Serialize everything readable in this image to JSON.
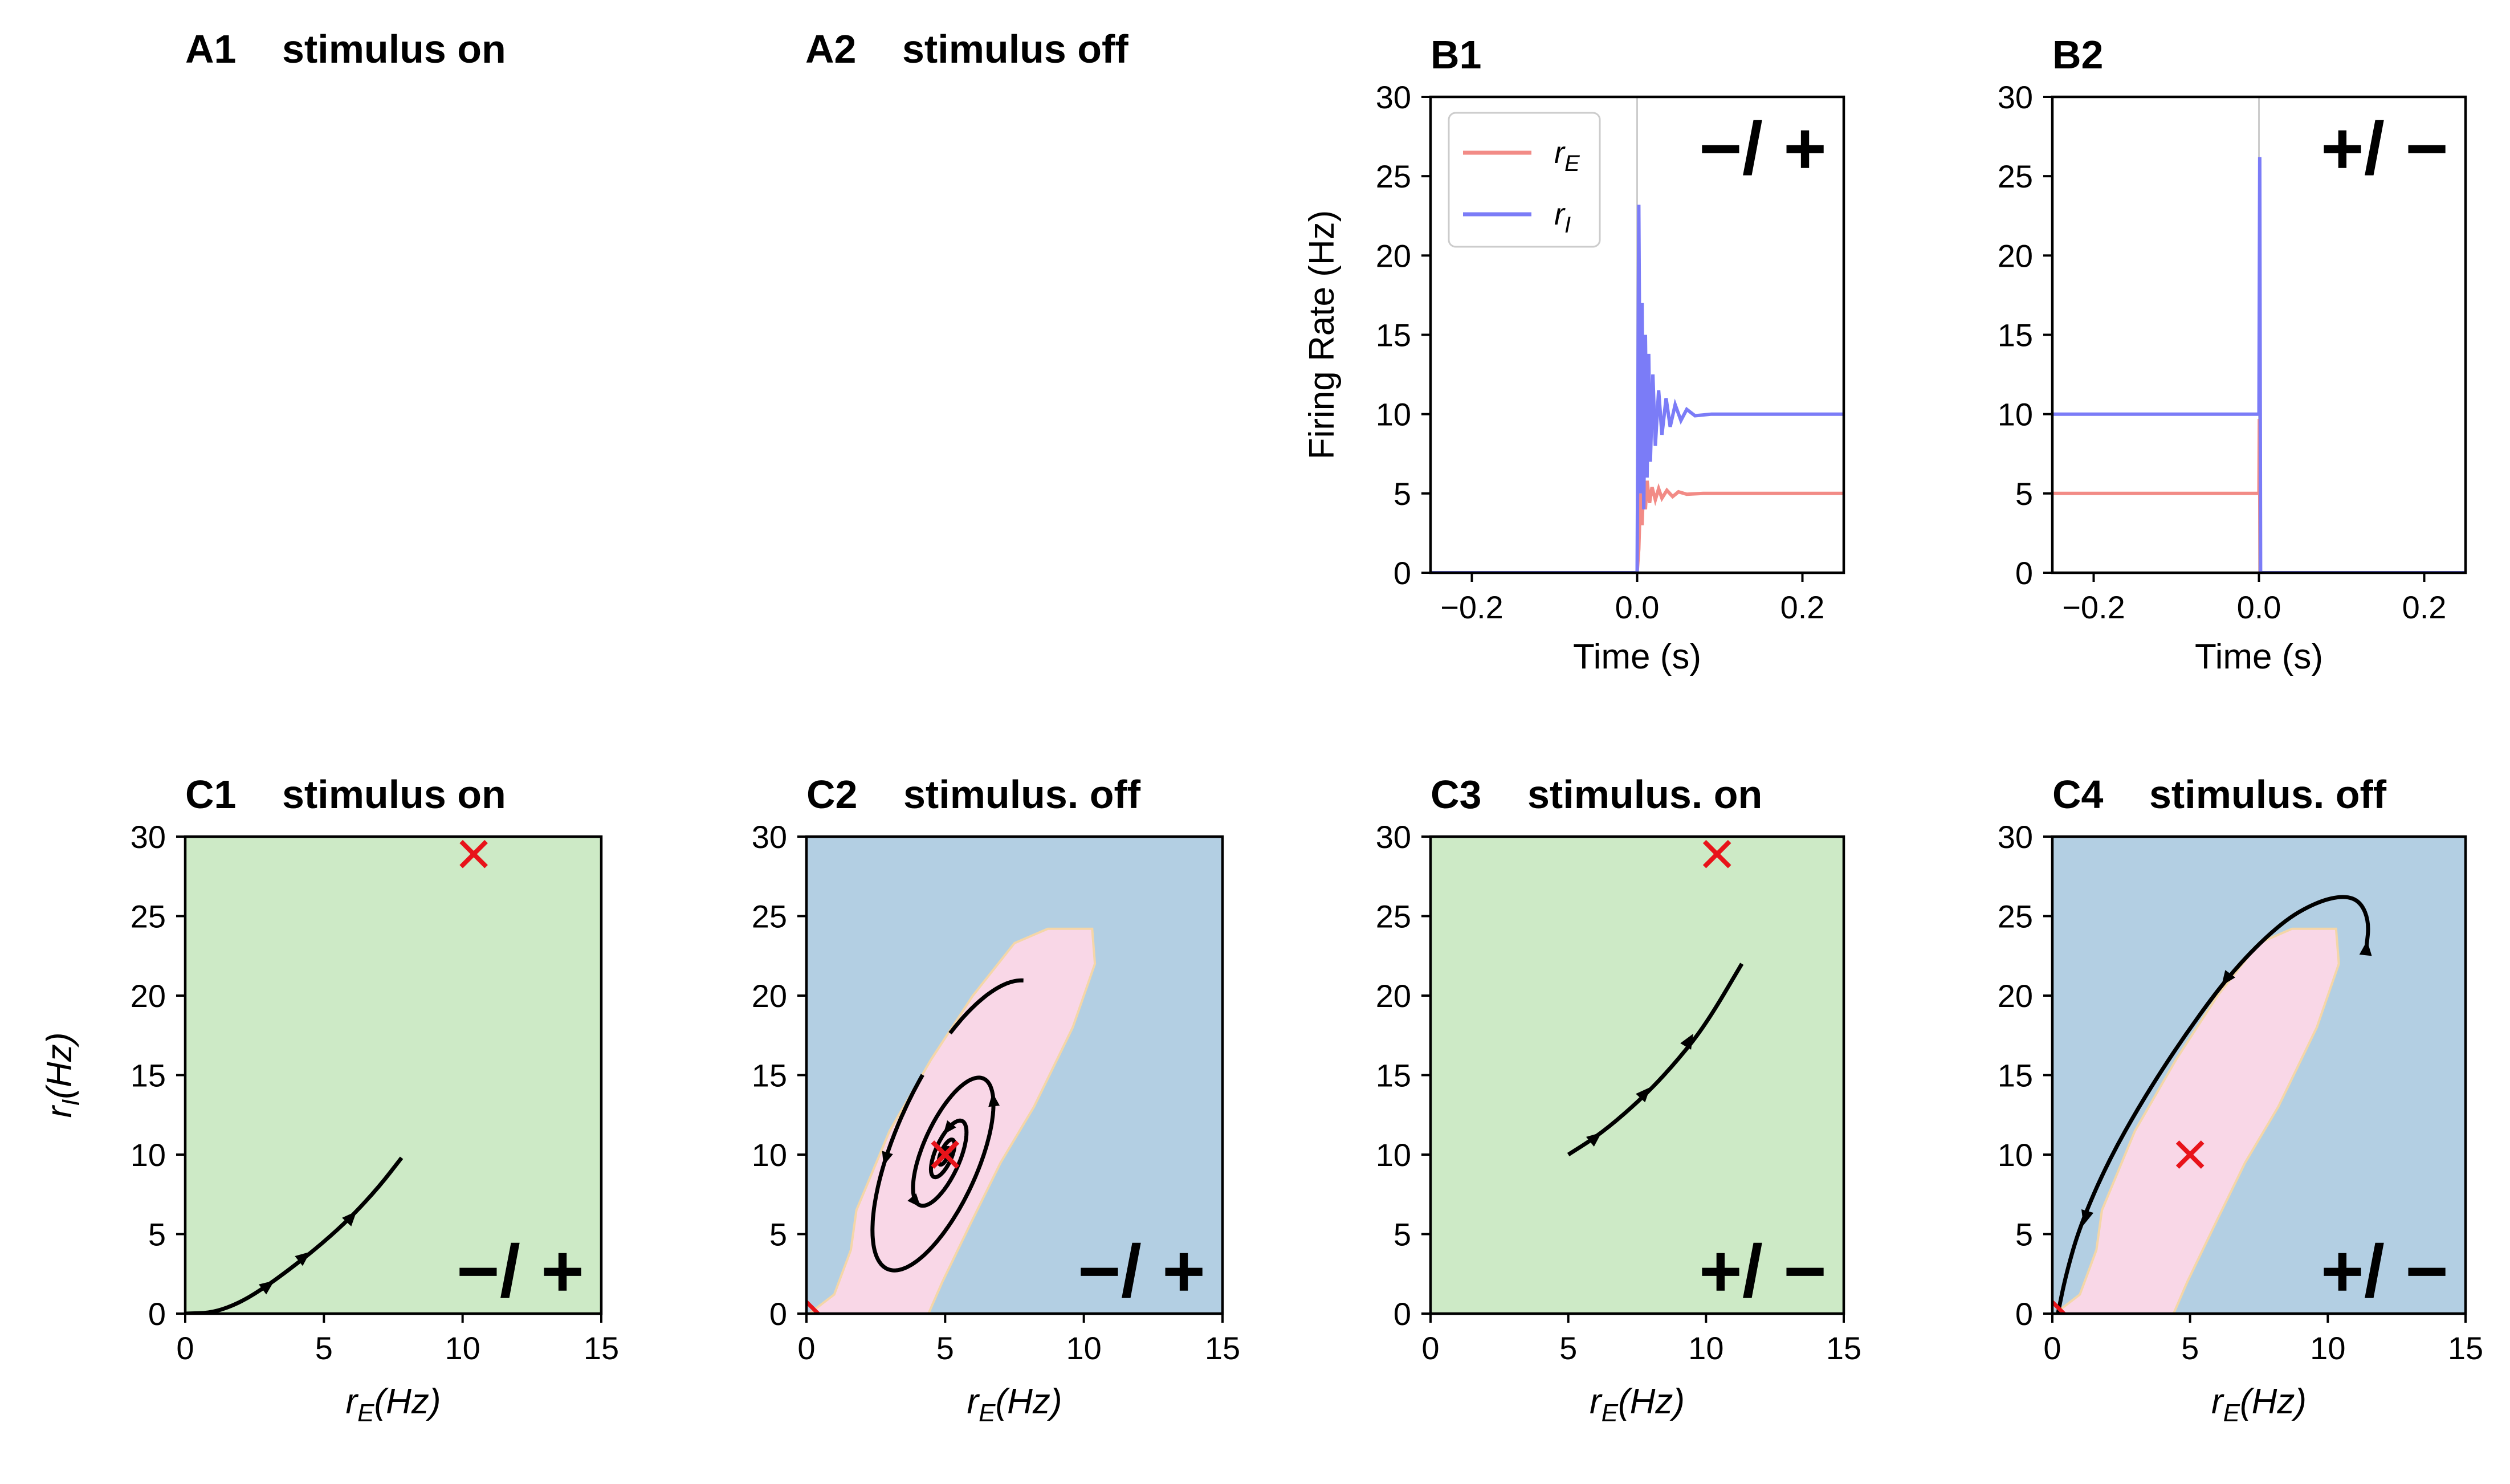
{
  "panels": {
    "A1": {
      "letter": "A1",
      "subtitle": "stimulus on"
    },
    "A2": {
      "letter": "A2",
      "subtitle": "stimulus off"
    }
  },
  "chart_data": [
    {
      "id": "B1",
      "type": "line",
      "letter": "B1",
      "subtitle": "",
      "xlabel": "Time (s)",
      "ylabel": "Firing Rate (Hz)",
      "xlim": [
        -0.25,
        0.25
      ],
      "ylim": [
        0,
        30
      ],
      "xticks": [
        -0.2,
        0.0,
        0.2
      ],
      "xticklabels": [
        "−0.2",
        "0.0",
        "0.2"
      ],
      "yticks": [
        0,
        5,
        10,
        15,
        20,
        25,
        30
      ],
      "sign": "−/ +",
      "legend": {
        "position": "upper-left",
        "entries": [
          {
            "name": "r",
            "sub": "E",
            "color": "#f28b86"
          },
          {
            "name": "r",
            "sub": "I",
            "color": "#7b7cf7"
          }
        ]
      },
      "series": [
        {
          "name": "rE",
          "color": "#f28b86",
          "points": [
            [
              -0.25,
              0
            ],
            [
              0,
              0
            ],
            [
              0.002,
              1.5
            ],
            [
              0.004,
              5
            ],
            [
              0.006,
              3
            ],
            [
              0.008,
              6
            ],
            [
              0.01,
              4
            ],
            [
              0.012,
              5.8
            ],
            [
              0.015,
              4.4
            ],
            [
              0.018,
              5.4
            ],
            [
              0.022,
              4.6
            ],
            [
              0.026,
              5.3
            ],
            [
              0.03,
              4.7
            ],
            [
              0.036,
              5.2
            ],
            [
              0.043,
              4.8
            ],
            [
              0.05,
              5.1
            ],
            [
              0.06,
              4.95
            ],
            [
              0.08,
              5
            ],
            [
              0.25,
              5
            ]
          ]
        },
        {
          "name": "rI",
          "color": "#7b7cf7",
          "points": [
            [
              -0.25,
              0
            ],
            [
              0,
              0
            ],
            [
              0.002,
              23.2
            ],
            [
              0.004,
              5
            ],
            [
              0.006,
              17
            ],
            [
              0.008,
              4
            ],
            [
              0.01,
              15
            ],
            [
              0.012,
              6
            ],
            [
              0.014,
              13.8
            ],
            [
              0.016,
              7
            ],
            [
              0.019,
              12.5
            ],
            [
              0.022,
              8
            ],
            [
              0.026,
              11.5
            ],
            [
              0.03,
              8.7
            ],
            [
              0.035,
              11
            ],
            [
              0.04,
              9.2
            ],
            [
              0.046,
              10.6
            ],
            [
              0.053,
              9.6
            ],
            [
              0.06,
              10.3
            ],
            [
              0.07,
              9.9
            ],
            [
              0.09,
              10
            ],
            [
              0.25,
              10
            ]
          ]
        }
      ]
    },
    {
      "id": "B2",
      "type": "line",
      "letter": "B2",
      "subtitle": "",
      "xlabel": "Time (s)",
      "ylabel": "",
      "xlim": [
        -0.25,
        0.25
      ],
      "ylim": [
        0,
        30
      ],
      "xticks": [
        -0.2,
        0.0,
        0.2
      ],
      "xticklabels": [
        "−0.2",
        "0.0",
        "0.2"
      ],
      "yticks": [
        0,
        5,
        10,
        15,
        20,
        25,
        30
      ],
      "sign": "+/ −",
      "series": [
        {
          "name": "rE",
          "color": "#f28b86",
          "points": [
            [
              -0.25,
              5
            ],
            [
              0,
              5
            ],
            [
              0.0005,
              9.7
            ],
            [
              0.0015,
              0
            ],
            [
              0.25,
              0
            ]
          ]
        },
        {
          "name": "rI",
          "color": "#7b7cf7",
          "points": [
            [
              -0.25,
              10
            ],
            [
              0,
              10
            ],
            [
              0.001,
              26.2
            ],
            [
              0.002,
              0
            ],
            [
              0.25,
              0
            ]
          ]
        }
      ]
    },
    {
      "id": "C1",
      "type": "phase-plane",
      "letter": "C1",
      "subtitle": "stimulus on",
      "xlabel": "r_E(Hz)",
      "ylabel": "r_I(Hz)",
      "xlim": [
        0,
        15
      ],
      "ylim": [
        0,
        30
      ],
      "xticks": [
        0,
        5,
        10,
        15
      ],
      "yticks": [
        0,
        5,
        10,
        15,
        20,
        25,
        30
      ],
      "background": "#cdeac6",
      "sign": "−/ +",
      "fixed_point": [
        10.4,
        28.9
      ],
      "trajectories": [
        {
          "points": [
            [
              0,
              0
            ],
            [
              1,
              0.05
            ],
            [
              2,
              0.7
            ],
            [
              3,
              1.8
            ],
            [
              4,
              3.1
            ],
            [
              5,
              4.5
            ],
            [
              6,
              6.1
            ],
            [
              7,
              8
            ],
            [
              7.8,
              9.8
            ]
          ],
          "arrows": [
            [
              3,
              1.8
            ],
            [
              4.3,
              3.6
            ],
            [
              6,
              6.1
            ]
          ]
        }
      ]
    },
    {
      "id": "C2",
      "type": "phase-plane",
      "letter": "C2",
      "subtitle": "stimulus. off",
      "xlabel": "r_E(Hz)",
      "ylabel": "",
      "xlim": [
        0,
        15
      ],
      "ylim": [
        0,
        30
      ],
      "xticks": [
        0,
        5,
        10,
        15
      ],
      "yticks": [
        0,
        5,
        10,
        15,
        20,
        25,
        30
      ],
      "background": "#b3cfe3",
      "region_color": "#f9d7e7",
      "sign": "−/ +",
      "region": [
        [
          0.1,
          0
        ],
        [
          1,
          1.2
        ],
        [
          1.6,
          4
        ],
        [
          1.8,
          6.5
        ],
        [
          3,
          11.5
        ],
        [
          4.5,
          16
        ],
        [
          6,
          20
        ],
        [
          7.5,
          23.3
        ],
        [
          8.7,
          24.2
        ],
        [
          10.3,
          24.2
        ],
        [
          10.4,
          22
        ],
        [
          9.6,
          18
        ],
        [
          8.2,
          13
        ],
        [
          7,
          9.5
        ],
        [
          5.9,
          5.6
        ],
        [
          4.9,
          2
        ],
        [
          4.4,
          0
        ]
      ],
      "fixed_point": [
        5,
        10
      ],
      "spiral": {
        "center": [
          5,
          10
        ],
        "semi_major": [
          3.8,
          15.0
        ],
        "semi_minor": 1.25,
        "angle_deg": 65.8,
        "turns": 4.2
      },
      "extra_fixed": [
        0.25,
        0.3
      ]
    },
    {
      "id": "C3",
      "type": "phase-plane",
      "letter": "C3",
      "subtitle": "stimulus. on",
      "xlabel": "r_E(Hz)",
      "ylabel": "",
      "xlim": [
        0,
        15
      ],
      "ylim": [
        0,
        30
      ],
      "xticks": [
        0,
        5,
        10,
        15
      ],
      "yticks": [
        0,
        5,
        10,
        15,
        20,
        25,
        30
      ],
      "background": "#cdeac6",
      "sign": "+/ −",
      "fixed_point": [
        10.4,
        28.9
      ],
      "trajectories": [
        {
          "points": [
            [
              5,
              10
            ],
            [
              6,
              11.1
            ],
            [
              7,
              12.5
            ],
            [
              8,
              14.1
            ],
            [
              9,
              16
            ],
            [
              10,
              18.2
            ],
            [
              11.3,
              22
            ]
          ],
          "arrows": [
            [
              6,
              11.1
            ],
            [
              7.8,
              13.9
            ],
            [
              9.4,
              17.2
            ]
          ]
        }
      ]
    },
    {
      "id": "C4",
      "type": "phase-plane",
      "letter": "C4",
      "subtitle": "stimulus. off",
      "xlabel": "r_E(Hz)",
      "ylabel": "",
      "xlim": [
        0,
        15
      ],
      "ylim": [
        0,
        30
      ],
      "xticks": [
        0,
        5,
        10,
        15
      ],
      "yticks": [
        0,
        5,
        10,
        15,
        20,
        25,
        30
      ],
      "background": "#b3cfe3",
      "region_color": "#f9d7e7",
      "sign": "+/ −",
      "region": [
        [
          0.1,
          0
        ],
        [
          1,
          1.2
        ],
        [
          1.6,
          4
        ],
        [
          1.8,
          6.5
        ],
        [
          3,
          11.5
        ],
        [
          4.5,
          16
        ],
        [
          6,
          20
        ],
        [
          7.5,
          23.3
        ],
        [
          8.7,
          24.2
        ],
        [
          10.3,
          24.2
        ],
        [
          10.4,
          22
        ],
        [
          9.6,
          18
        ],
        [
          8.2,
          13
        ],
        [
          7,
          9.5
        ],
        [
          5.9,
          5.6
        ],
        [
          4.9,
          2
        ],
        [
          4.4,
          0
        ]
      ],
      "fixed_point": [
        5,
        10
      ],
      "extra_fixed": [
        0.25,
        0.3
      ],
      "trajectories": [
        {
          "points": [
            [
              11.4,
              23
            ],
            [
              11.5,
              24.6
            ],
            [
              11.2,
              25.9
            ],
            [
              10.6,
              26.3
            ],
            [
              9.6,
              25.9
            ],
            [
              8.3,
              24.6
            ],
            [
              6.5,
              21.5
            ],
            [
              4.8,
              17.5
            ],
            [
              3.3,
              13.5
            ],
            [
              2,
              9.5
            ],
            [
              1,
              5.5
            ],
            [
              0.5,
              2.5
            ],
            [
              0.2,
              0
            ]
          ],
          "arrows": [
            [
              11.4,
              23
            ],
            [
              6.3,
              21
            ],
            [
              1.2,
              6
            ]
          ]
        }
      ]
    }
  ]
}
